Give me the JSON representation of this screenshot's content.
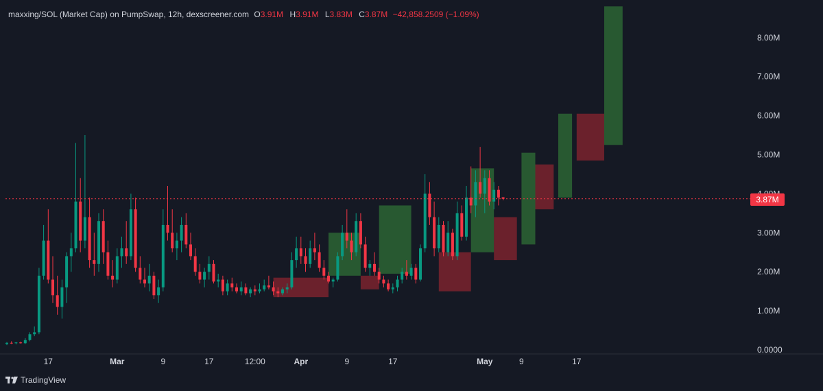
{
  "legend": {
    "title": "maxxing/SOL (Market Cap) on PumpSwap, 12h, dexscreener.com",
    "open_key": "O",
    "open": "3.91M",
    "high_key": "H",
    "high": "3.91M",
    "low_key": "L",
    "low": "3.83M",
    "close_key": "C",
    "close": "3.87M",
    "change": "−42,858.2509 (−1.09%)"
  },
  "price_tag": "3.87M",
  "brand": "TradingView",
  "colors": {
    "background": "#151924",
    "up": "#089981",
    "down": "#f23645",
    "zone_green": "rgba(56,142,60,0.55)",
    "zone_red": "rgba(178,40,51,0.55)",
    "text": "#d1d4dc"
  },
  "chart_data": {
    "type": "candlestick",
    "title": "maxxing/SOL (Market Cap) on PumpSwap, 12h, dexscreener.com",
    "ylim": [
      0,
      8.8
    ],
    "y_unit": "M",
    "yticks": [
      "0.0000",
      "1.00M",
      "2.00M",
      "3.00M",
      "4.00M",
      "5.00M",
      "6.00M",
      "7.00M",
      "8.00M"
    ],
    "yticks_values": [
      0,
      1,
      2,
      3,
      4,
      5,
      6,
      7,
      8
    ],
    "x_ticks": [
      {
        "label": "17",
        "i": 9
      },
      {
        "label": "Mar",
        "i": 24
      },
      {
        "label": "9",
        "i": 34
      },
      {
        "label": "17",
        "i": 44
      },
      {
        "label": "12:00",
        "i": 54
      },
      {
        "label": "Apr",
        "i": 64
      },
      {
        "label": "9",
        "i": 74
      },
      {
        "label": "17",
        "i": 84
      },
      {
        "label": "May",
        "i": 104
      },
      {
        "label": "9",
        "i": 112
      },
      {
        "label": "17",
        "i": 124
      }
    ],
    "last_close": 3.87,
    "candles": [
      [
        0.15,
        0.2,
        0.12,
        0.18
      ],
      [
        0.18,
        0.22,
        0.15,
        0.17
      ],
      [
        0.17,
        0.2,
        0.14,
        0.19
      ],
      [
        0.19,
        0.21,
        0.16,
        0.17
      ],
      [
        0.17,
        0.3,
        0.15,
        0.25
      ],
      [
        0.25,
        0.45,
        0.22,
        0.4
      ],
      [
        0.4,
        0.6,
        0.35,
        0.45
      ],
      [
        0.45,
        2.1,
        0.4,
        1.9
      ],
      [
        1.9,
        3.2,
        1.8,
        2.8
      ],
      [
        2.8,
        3.6,
        1.7,
        1.8
      ],
      [
        1.8,
        2.4,
        1.2,
        1.4
      ],
      [
        1.4,
        1.9,
        0.9,
        1.1
      ],
      [
        1.1,
        1.8,
        0.8,
        1.6
      ],
      [
        1.6,
        2.5,
        1.2,
        2.4
      ],
      [
        2.4,
        3.0,
        2.0,
        2.6
      ],
      [
        2.6,
        5.3,
        2.5,
        3.8
      ],
      [
        3.8,
        4.4,
        2.5,
        2.8
      ],
      [
        2.8,
        5.5,
        2.6,
        3.4
      ],
      [
        3.4,
        3.9,
        2.1,
        2.3
      ],
      [
        2.3,
        3.0,
        1.9,
        2.2
      ],
      [
        2.2,
        3.5,
        2.0,
        3.3
      ],
      [
        3.3,
        3.6,
        2.2,
        2.5
      ],
      [
        2.5,
        2.8,
        1.8,
        1.9
      ],
      [
        1.9,
        2.3,
        1.6,
        1.8
      ],
      [
        1.8,
        2.6,
        1.7,
        2.4
      ],
      [
        2.4,
        2.9,
        2.1,
        2.6
      ],
      [
        2.6,
        3.3,
        2.2,
        2.4
      ],
      [
        2.4,
        4.0,
        2.3,
        3.6
      ],
      [
        3.6,
        3.9,
        2.0,
        2.1
      ],
      [
        2.1,
        2.4,
        1.7,
        1.8
      ],
      [
        1.8,
        2.1,
        1.6,
        1.7
      ],
      [
        1.7,
        2.2,
        1.5,
        1.9
      ],
      [
        1.9,
        2.0,
        1.3,
        1.4
      ],
      [
        1.4,
        1.8,
        1.2,
        1.6
      ],
      [
        1.6,
        3.6,
        1.5,
        3.2
      ],
      [
        3.2,
        4.2,
        2.8,
        3.0
      ],
      [
        3.0,
        3.6,
        2.5,
        2.6
      ],
      [
        2.6,
        3.0,
        2.3,
        2.8
      ],
      [
        2.8,
        3.4,
        2.5,
        3.2
      ],
      [
        3.2,
        3.5,
        2.6,
        2.7
      ],
      [
        2.7,
        3.0,
        2.3,
        2.4
      ],
      [
        2.4,
        2.6,
        1.9,
        2.0
      ],
      [
        2.0,
        2.2,
        1.7,
        1.8
      ],
      [
        1.8,
        2.1,
        1.6,
        2.0
      ],
      [
        2.0,
        2.4,
        1.8,
        2.2
      ],
      [
        2.2,
        2.3,
        1.7,
        1.75
      ],
      [
        1.75,
        1.95,
        1.6,
        1.8
      ],
      [
        1.8,
        1.9,
        1.4,
        1.5
      ],
      [
        1.5,
        1.8,
        1.4,
        1.7
      ],
      [
        1.7,
        1.85,
        1.5,
        1.6
      ],
      [
        1.6,
        1.7,
        1.45,
        1.5
      ],
      [
        1.5,
        1.75,
        1.4,
        1.6
      ],
      [
        1.6,
        1.7,
        1.4,
        1.45
      ],
      [
        1.45,
        1.6,
        1.35,
        1.55
      ],
      [
        1.55,
        1.65,
        1.4,
        1.5
      ],
      [
        1.5,
        1.7,
        1.45,
        1.55
      ],
      [
        1.55,
        1.8,
        1.5,
        1.65
      ],
      [
        1.65,
        1.9,
        1.55,
        1.6
      ],
      [
        1.6,
        1.75,
        1.4,
        1.5
      ],
      [
        1.5,
        1.6,
        1.35,
        1.45
      ],
      [
        1.45,
        1.6,
        1.4,
        1.55
      ],
      [
        1.55,
        1.7,
        1.45,
        1.6
      ],
      [
        1.6,
        2.5,
        1.55,
        2.3
      ],
      [
        2.3,
        2.9,
        2.1,
        2.6
      ],
      [
        2.6,
        2.9,
        2.2,
        2.4
      ],
      [
        2.4,
        2.6,
        2.0,
        2.2
      ],
      [
        2.2,
        2.8,
        2.1,
        2.6
      ],
      [
        2.6,
        3.0,
        2.3,
        2.5
      ],
      [
        2.5,
        2.7,
        2.0,
        2.1
      ],
      [
        2.1,
        2.3,
        1.8,
        1.9
      ],
      [
        1.9,
        2.0,
        1.7,
        1.75
      ],
      [
        1.75,
        1.85,
        1.6,
        1.8
      ],
      [
        1.8,
        2.5,
        1.75,
        2.4
      ],
      [
        2.4,
        3.2,
        2.3,
        3.0
      ],
      [
        3.0,
        3.6,
        2.6,
        2.8
      ],
      [
        2.8,
        3.0,
        2.3,
        2.5
      ],
      [
        2.5,
        3.5,
        2.4,
        3.3
      ],
      [
        3.3,
        3.5,
        2.6,
        2.7
      ],
      [
        2.7,
        2.9,
        2.0,
        2.1
      ],
      [
        2.1,
        2.3,
        1.9,
        2.2
      ],
      [
        2.2,
        2.5,
        1.9,
        2.0
      ],
      [
        2.0,
        2.1,
        1.7,
        1.8
      ],
      [
        1.8,
        1.9,
        1.6,
        1.7
      ],
      [
        1.7,
        1.8,
        1.5,
        1.55
      ],
      [
        1.55,
        1.7,
        1.45,
        1.6
      ],
      [
        1.6,
        1.9,
        1.5,
        1.8
      ],
      [
        1.8,
        2.1,
        1.7,
        2.0
      ],
      [
        2.0,
        2.3,
        1.8,
        1.9
      ],
      [
        1.9,
        2.2,
        1.8,
        2.1
      ],
      [
        2.1,
        2.2,
        1.7,
        1.8
      ],
      [
        1.8,
        2.7,
        1.75,
        2.6
      ],
      [
        2.6,
        4.5,
        2.5,
        4.0
      ],
      [
        4.0,
        4.3,
        3.2,
        3.4
      ],
      [
        3.4,
        3.8,
        2.4,
        2.6
      ],
      [
        2.6,
        3.4,
        2.5,
        3.2
      ],
      [
        3.2,
        3.3,
        2.4,
        2.5
      ],
      [
        2.5,
        3.3,
        2.4,
        3.0
      ],
      [
        3.0,
        3.1,
        2.3,
        2.4
      ],
      [
        2.4,
        3.8,
        2.3,
        3.5
      ],
      [
        3.5,
        3.7,
        2.8,
        2.9
      ],
      [
        2.9,
        4.2,
        2.8,
        3.9
      ],
      [
        3.9,
        4.7,
        3.5,
        3.7
      ],
      [
        3.7,
        4.6,
        3.4,
        4.3
      ],
      [
        4.3,
        5.2,
        3.9,
        4.0
      ],
      [
        4.0,
        4.6,
        3.5,
        4.4
      ],
      [
        4.4,
        4.6,
        3.7,
        3.8
      ],
      [
        3.8,
        4.3,
        3.6,
        4.1
      ],
      [
        4.1,
        4.2,
        3.7,
        3.9
      ],
      [
        3.91,
        3.91,
        3.83,
        3.87
      ]
    ],
    "zones": [
      {
        "color": "red",
        "i0": 58,
        "i1": 70,
        "y0": 1.35,
        "y1": 1.85
      },
      {
        "color": "green",
        "i0": 70,
        "i1": 77,
        "y0": 1.9,
        "y1": 3.0
      },
      {
        "color": "red",
        "i0": 77,
        "i1": 81,
        "y0": 1.55,
        "y1": 1.9
      },
      {
        "color": "green",
        "i0": 81,
        "i1": 88,
        "y0": 1.95,
        "y1": 3.7
      },
      {
        "color": "red",
        "i0": 94,
        "i1": 101,
        "y0": 1.5,
        "y1": 2.5
      },
      {
        "color": "green",
        "i0": 101,
        "i1": 106,
        "y0": 2.5,
        "y1": 4.65
      },
      {
        "color": "red",
        "i0": 106,
        "i1": 111,
        "y0": 2.3,
        "y1": 3.4
      },
      {
        "color": "green",
        "i0": 112,
        "i1": 115,
        "y0": 2.7,
        "y1": 5.05
      },
      {
        "color": "red",
        "i0": 115,
        "i1": 119,
        "y0": 3.6,
        "y1": 4.75
      },
      {
        "color": "green",
        "i0": 120,
        "i1": 123,
        "y0": 3.9,
        "y1": 6.05
      },
      {
        "color": "red",
        "i0": 124,
        "i1": 130,
        "y0": 4.85,
        "y1": 6.05
      },
      {
        "color": "green",
        "i0": 130,
        "i1": 134,
        "y0": 5.25,
        "y1": 8.8
      }
    ]
  }
}
